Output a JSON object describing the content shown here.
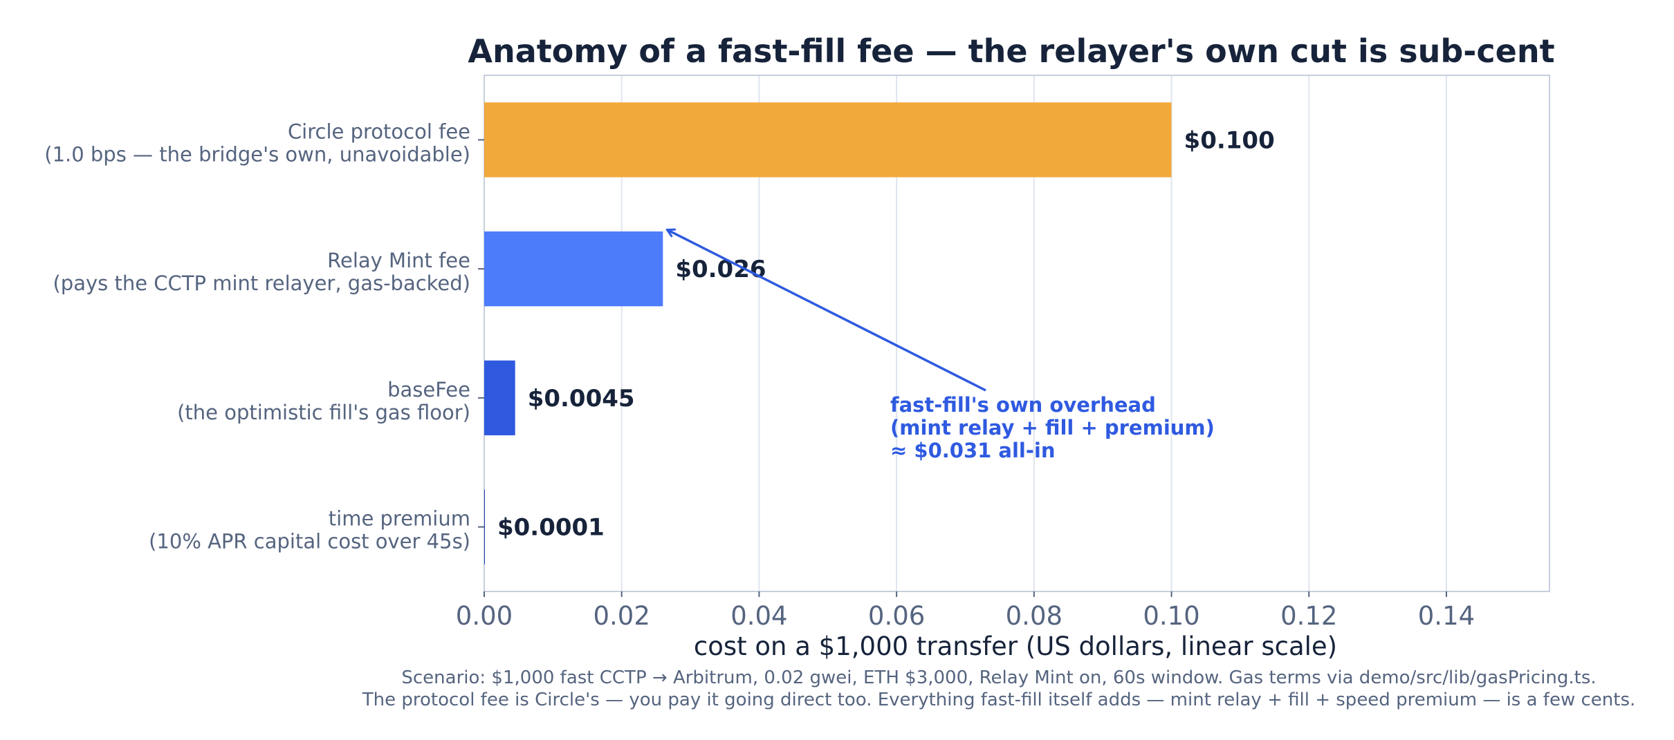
{
  "chart_data": {
    "type": "bar",
    "orientation": "horizontal",
    "title": "Anatomy of a fast-fill fee — the relayer's own cut is sub-cent",
    "xlabel": "cost on a $1,000 transfer  (US dollars, linear scale)",
    "ylabel": "",
    "xlim": [
      0,
      0.155
    ],
    "x_ticks": [
      "0.00",
      "0.02",
      "0.04",
      "0.06",
      "0.08",
      "0.10",
      "0.12",
      "0.14"
    ],
    "grid": "vertical",
    "bars": [
      {
        "label_line1": "Circle protocol fee",
        "label_line2": "(1.0 bps — the bridge's own, unavoidable)",
        "value": 0.1,
        "value_label": "$0.100",
        "color": "#f2a93b"
      },
      {
        "label_line1": "Relay Mint fee",
        "label_line2": "(pays the CCTP mint relayer, gas-backed)",
        "value": 0.026,
        "value_label": "$0.026",
        "color": "#4d7cfa"
      },
      {
        "label_line1": "baseFee",
        "label_line2": "(the optimistic fill's gas floor)",
        "value": 0.0045,
        "value_label": "$0.0045",
        "color": "#2f5ae0"
      },
      {
        "label_line1": "time premium",
        "label_line2": "(10% APR capital cost over 45s)",
        "value": 0.0001,
        "value_label": "$0.0001",
        "color": "#1e3fae"
      }
    ],
    "annotation": {
      "line1": "fast-fill's own overhead",
      "line2": "(mint relay + fill + premium)",
      "line3": "≈ $0.031 all-in",
      "arrow_to_value": 0.0265,
      "color": "#2f5ae0"
    },
    "footnote_line1": "Scenario: $1,000 fast CCTP → Arbitrum, 0.02 gwei, ETH $3,000, Relay Mint on, 60s window. Gas terms via demo/src/lib/gasPricing.ts.",
    "footnote_line2": "The protocol fee is Circle's — you pay it going direct too. Everything fast-fill itself adds — mint relay + fill + speed premium — is a few cents."
  }
}
